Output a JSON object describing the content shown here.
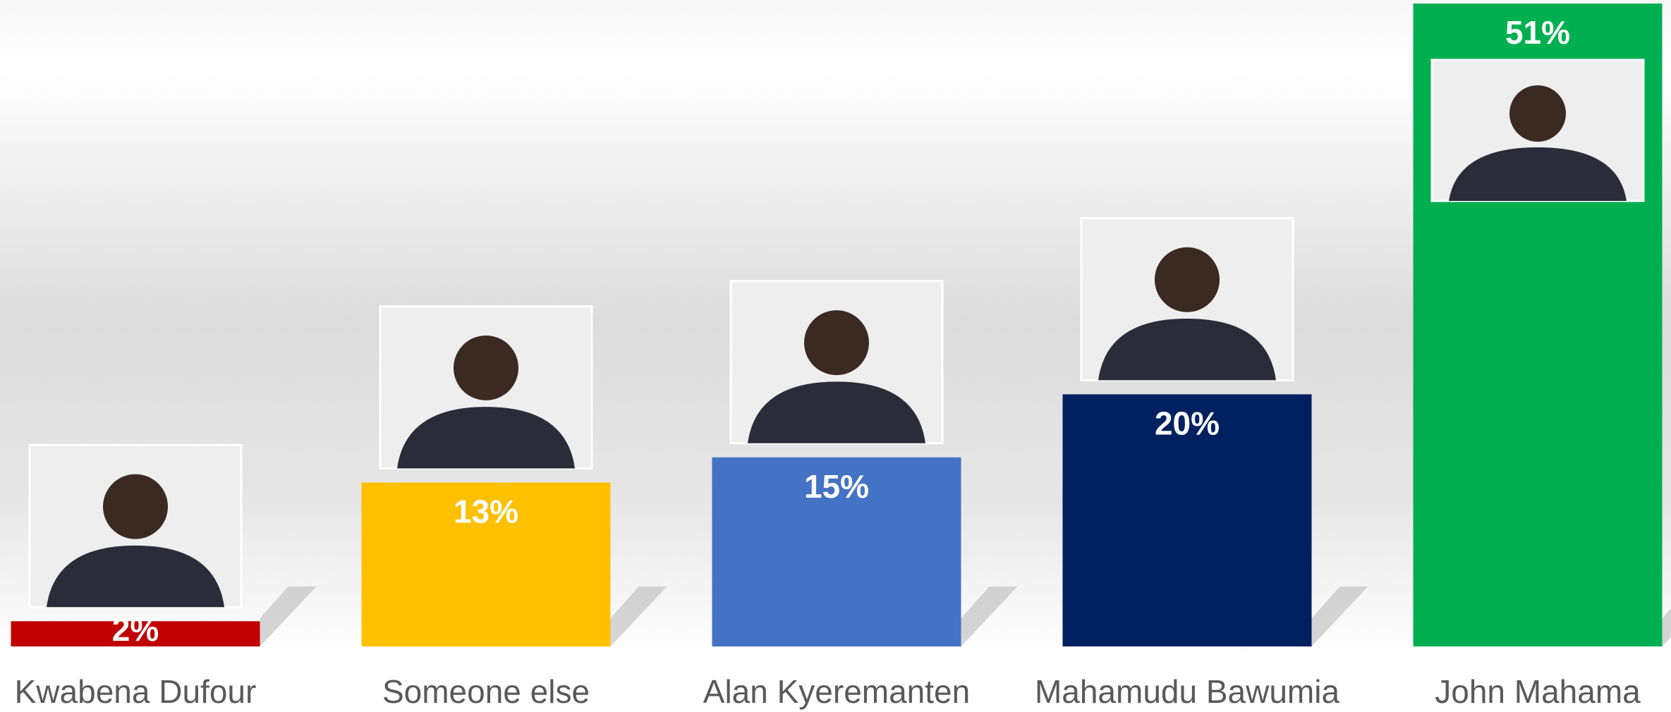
{
  "chart_data": {
    "type": "bar",
    "categories": [
      "Kwabena Dufour",
      "Someone else",
      "Alan Kyeremanten",
      "Mahamudu Bawumia",
      "John Mahama"
    ],
    "values": [
      2,
      13,
      15,
      20,
      51
    ],
    "value_labels": [
      "2%",
      "13%",
      "15%",
      "20%",
      "51%"
    ],
    "colors": [
      "#c00000",
      "#ffc000",
      "#4472c4",
      "#002060",
      "#00b050"
    ]
  }
}
